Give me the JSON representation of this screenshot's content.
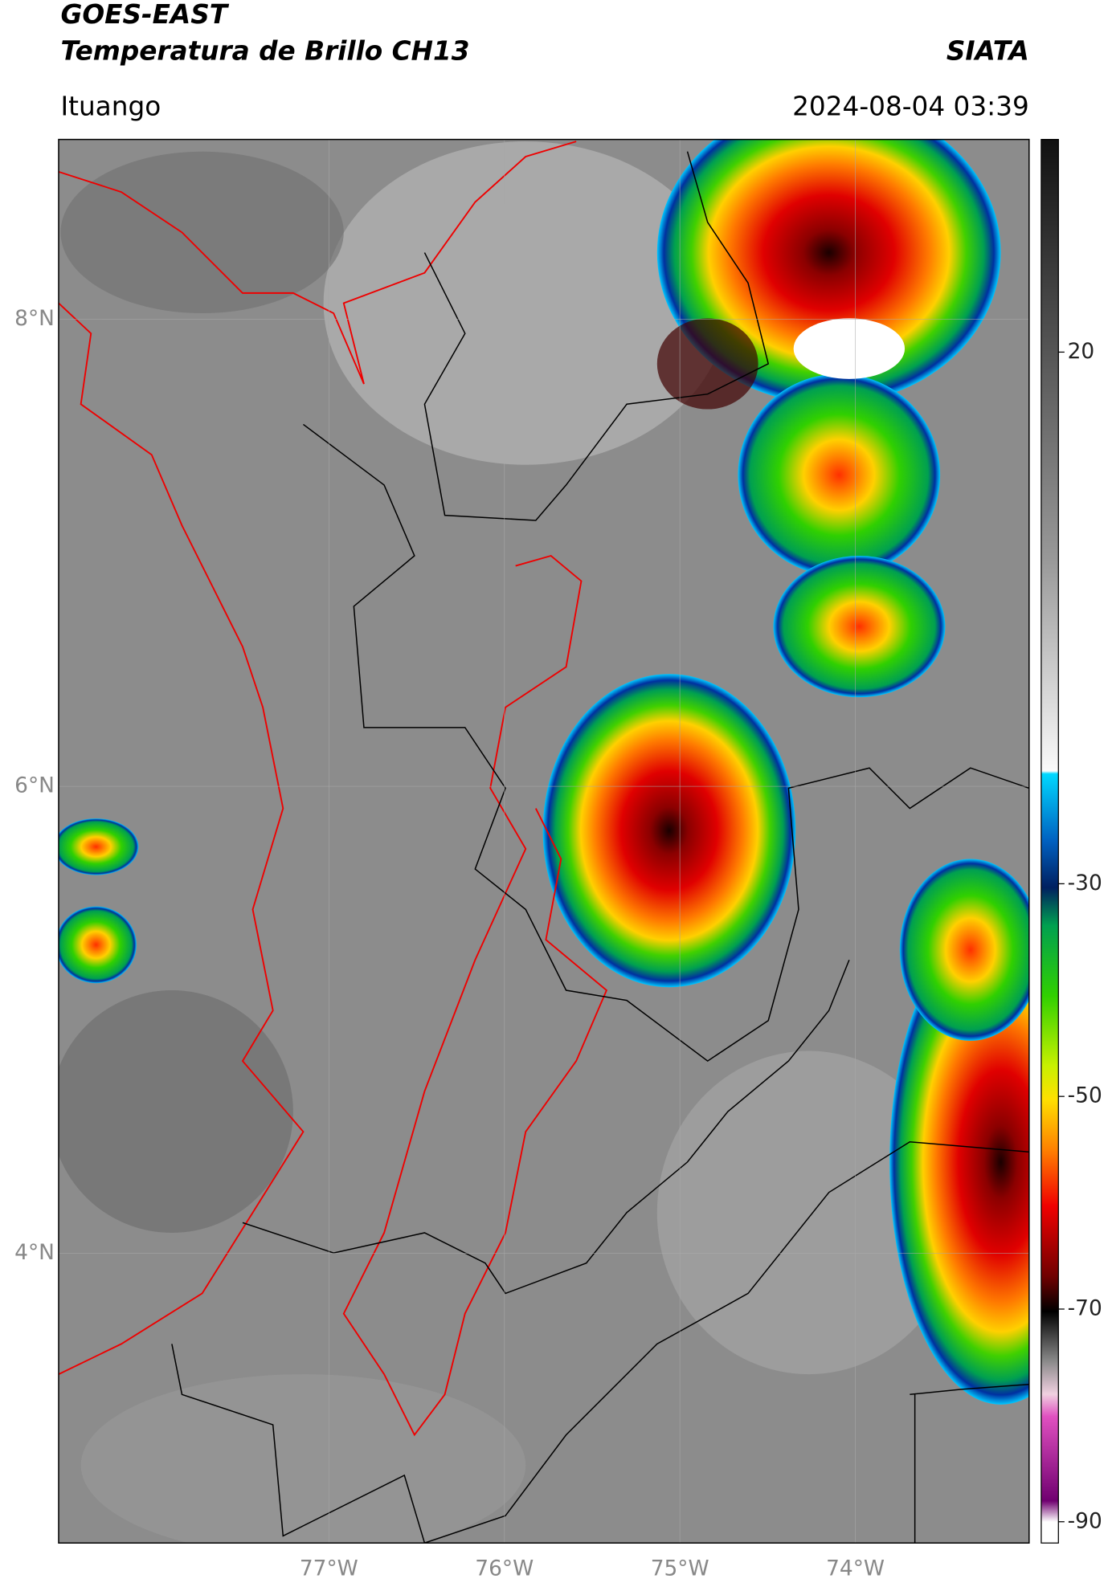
{
  "header": {
    "title": "GOES-EAST",
    "subtitle": "Temperatura de Brillo CH13",
    "source": "SIATA",
    "location": "Ituango",
    "timestamp": "2024-08-04 03:39"
  },
  "map": {
    "xlim": [
      -78.54,
      -73.01
    ],
    "ylim": [
      2.76,
      8.77
    ],
    "xticks": [
      {
        "value": -77,
        "label": "77°W"
      },
      {
        "value": -76,
        "label": "76°W"
      },
      {
        "value": -75,
        "label": "75°W"
      },
      {
        "value": -74,
        "label": "74°W"
      }
    ],
    "yticks": [
      {
        "value": 8,
        "label": "8°N"
      },
      {
        "value": 6,
        "label": "6°N"
      },
      {
        "value": 4,
        "label": "4°N"
      }
    ],
    "grid": true
  },
  "colorbar": {
    "range": [
      -92,
      40
    ],
    "ticks": [
      20,
      -30,
      -50,
      -70,
      -90
    ]
  }
}
